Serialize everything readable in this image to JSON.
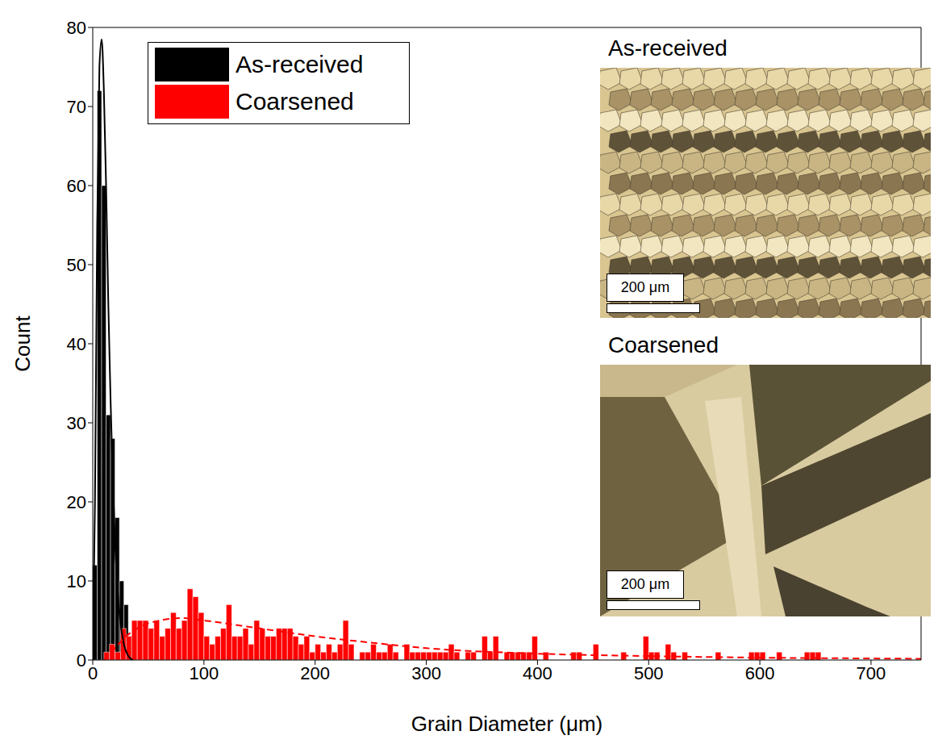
{
  "chart_data": {
    "type": "histogram",
    "x_label": "Grain Diameter (μm)",
    "y_label": "Count",
    "xlim": [
      0,
      745
    ],
    "xticks": [
      0,
      100,
      200,
      300,
      400,
      500,
      600,
      700
    ],
    "ylim": [
      0,
      80
    ],
    "yticks": [
      0,
      10,
      20,
      30,
      40,
      50,
      60,
      70,
      80
    ],
    "legend": "upper left",
    "series": [
      {
        "name": "As-received",
        "color": "#000000",
        "bins": [
          0,
          4,
          8,
          12,
          16,
          20,
          24,
          28,
          32,
          36
        ],
        "counts": [
          12,
          72,
          60,
          31,
          28,
          18,
          10,
          7,
          3
        ],
        "fit": {
          "line_style": "solid",
          "x": [
            0,
            2,
            4,
            6,
            8,
            10,
            12,
            14,
            16,
            18,
            20,
            24,
            28,
            32,
            36
          ],
          "y": [
            0,
            20,
            55,
            75,
            78.5,
            72,
            60,
            45,
            33,
            23,
            15,
            6,
            2,
            0.5,
            0
          ]
        }
      },
      {
        "name": "Coarsened",
        "color": "#ff0000",
        "bins": [
          10,
          15,
          20,
          25,
          30,
          35,
          40,
          45,
          50,
          55,
          60,
          65,
          70,
          75,
          80,
          85,
          90,
          95,
          100,
          105,
          110,
          115,
          120,
          125,
          130,
          135,
          140,
          145,
          150,
          155,
          160,
          165,
          170,
          175,
          180,
          185,
          190,
          195,
          200,
          205,
          210,
          215,
          220,
          225,
          230,
          235,
          240,
          245,
          250,
          255,
          260,
          265,
          270,
          275,
          280,
          285,
          290,
          295,
          300,
          305,
          310,
          315,
          320,
          325,
          330,
          335,
          340,
          345,
          350,
          355,
          360,
          365,
          370,
          375,
          380,
          385,
          390,
          395,
          400,
          405,
          410,
          415,
          420,
          425,
          430,
          435,
          440,
          445,
          450,
          455,
          460,
          465,
          470,
          475,
          480,
          485,
          490,
          495,
          500,
          505,
          510,
          515,
          520,
          525,
          530,
          535,
          540,
          545,
          550,
          555,
          560,
          565,
          570,
          575,
          580,
          585,
          590,
          595,
          600,
          605,
          610,
          615,
          620,
          625,
          630,
          635,
          640,
          645,
          650,
          655
        ],
        "counts": [
          1,
          2,
          1,
          4,
          3,
          5,
          5,
          5,
          4,
          5,
          3,
          4,
          6,
          4,
          5,
          9,
          8,
          6,
          3,
          2,
          3,
          4,
          7,
          3,
          3,
          4,
          2,
          5,
          4,
          3,
          3,
          4,
          4,
          4,
          3,
          2,
          3,
          1,
          2,
          1,
          2,
          1,
          2,
          5,
          2,
          0,
          1,
          1,
          2,
          1,
          1,
          2,
          1,
          0,
          2,
          1,
          1,
          1,
          1,
          1,
          1,
          1,
          2,
          1,
          0,
          1,
          1,
          0,
          3,
          1,
          3,
          0,
          1,
          1,
          1,
          1,
          1,
          3,
          0,
          1,
          0,
          0,
          0,
          0,
          1,
          1,
          0,
          0,
          2,
          0,
          0,
          0,
          0,
          1,
          0,
          0,
          0,
          3,
          1,
          1,
          0,
          2,
          1,
          0,
          1,
          0,
          0,
          0,
          0,
          0,
          1,
          0,
          0,
          0,
          0,
          0,
          1,
          1,
          1,
          0,
          0,
          1,
          0,
          0,
          0,
          0,
          1,
          1,
          1
        ],
        "fit": {
          "line_style": "dashed",
          "x": [
            10,
            20,
            30,
            40,
            60,
            80,
            100,
            150,
            200,
            250,
            300,
            400,
            500,
            600,
            700,
            745
          ],
          "y": [
            0,
            1.5,
            3,
            4,
            5,
            5.3,
            5,
            4,
            3,
            2.2,
            1.5,
            0.8,
            0.5,
            0.3,
            0.2,
            0.15
          ]
        }
      }
    ],
    "insets": [
      {
        "title": "As-received",
        "scale_bar": "200 μm"
      },
      {
        "title": "Coarsened",
        "scale_bar": "200 μm"
      }
    ]
  }
}
